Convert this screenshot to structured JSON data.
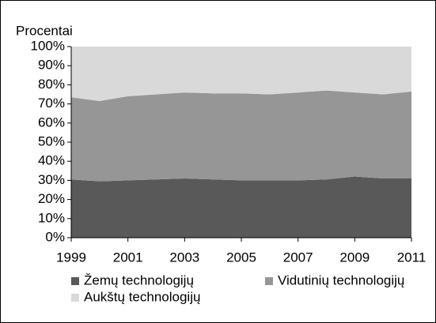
{
  "chart_data": {
    "type": "area",
    "stacked": true,
    "y_label": "Procentai",
    "x": [
      1999,
      2000,
      2001,
      2002,
      2003,
      2004,
      2005,
      2006,
      2007,
      2008,
      2009,
      2010,
      2011
    ],
    "series": [
      {
        "name": "Žemų technologijų",
        "color": "#595959",
        "values": [
          30.5,
          29.5,
          30,
          30.5,
          31,
          30.5,
          30,
          30,
          30,
          30.5,
          32,
          31,
          31
        ]
      },
      {
        "name": "Vidutinių technologijų",
        "color": "#969696",
        "values": [
          43,
          42,
          44,
          44.5,
          45,
          45,
          45.5,
          45,
          46,
          46.5,
          44,
          44,
          45.5
        ]
      },
      {
        "name": "Aukštų technologijų",
        "color": "#d9d9d9",
        "values": [
          26.5,
          28.5,
          26,
          25,
          24,
          24.5,
          24.5,
          25,
          24,
          23,
          24,
          25,
          23.5
        ]
      }
    ],
    "xlim": [
      1999,
      2011
    ],
    "xticks": [
      1999,
      2001,
      2003,
      2005,
      2007,
      2009,
      2011
    ],
    "ylim": [
      0,
      100
    ],
    "yticks": [
      {
        "value": 0,
        "label": "0%"
      },
      {
        "value": 10,
        "label": "10%"
      },
      {
        "value": 20,
        "label": "20%"
      },
      {
        "value": 30,
        "label": "30%"
      },
      {
        "value": 40,
        "label": "40%"
      },
      {
        "value": 50,
        "label": "50%"
      },
      {
        "value": 60,
        "label": "60%"
      },
      {
        "value": 70,
        "label": "70%"
      },
      {
        "value": 80,
        "label": "80%"
      },
      {
        "value": 90,
        "label": "90%"
      },
      {
        "value": 100,
        "label": "100%"
      }
    ]
  }
}
